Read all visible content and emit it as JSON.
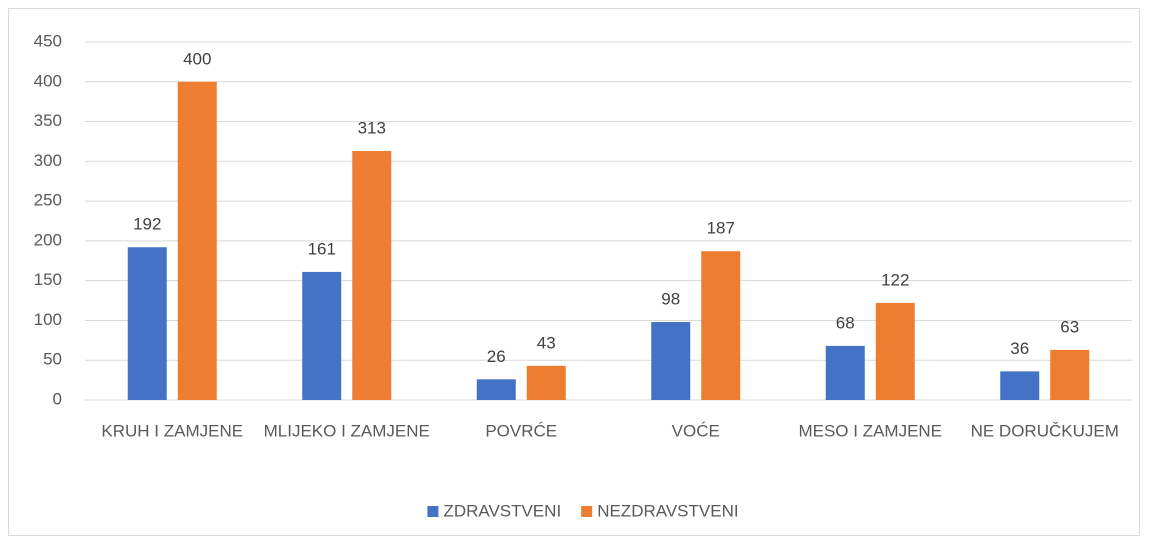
{
  "chart_data": {
    "type": "bar",
    "categories": [
      "KRUH I ZAMJENE",
      "MLIJEKO I ZAMJENE",
      "POVRĆE",
      "VOĆE",
      "MESO I ZAMJENE",
      "NE DORUČKUJEM"
    ],
    "series": [
      {
        "name": "ZDRAVSTVENI",
        "color": "#4472c4",
        "values": [
          192,
          161,
          26,
          98,
          68,
          36
        ]
      },
      {
        "name": "NEZDRAVSTVENI",
        "color": "#ed7d31",
        "values": [
          400,
          313,
          43,
          187,
          122,
          63
        ]
      }
    ],
    "ylim": [
      0,
      450
    ],
    "yticks": [
      0,
      50,
      100,
      150,
      200,
      250,
      300,
      350,
      400,
      450
    ],
    "grid": true,
    "legend": "bottom"
  }
}
